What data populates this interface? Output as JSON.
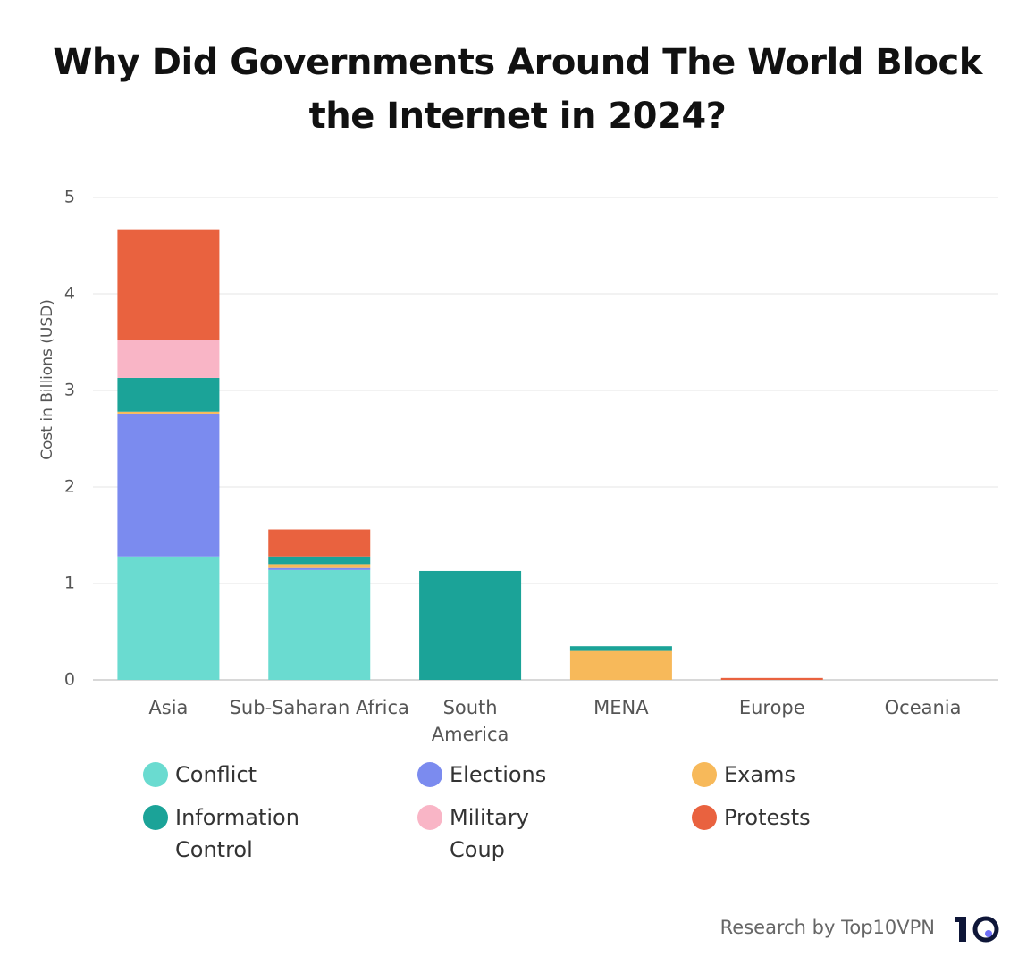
{
  "chart_data": {
    "type": "stacked_bar",
    "title": "Why Did Governments Around The World Block the Internet in 2024?",
    "y_label": "Cost in Billions (USD)",
    "categories": [
      "Asia",
      "Sub-Saharan Africa",
      "South America",
      "MENA",
      "Europe",
      "Oceania"
    ],
    "series": [
      {
        "name": "Conflict",
        "color": "#6adbd0",
        "values": [
          1.28,
          1.14,
          0,
          0,
          0,
          0
        ]
      },
      {
        "name": "Elections",
        "color": "#7b8bef",
        "values": [
          1.48,
          0.02,
          0,
          0,
          0,
          0
        ]
      },
      {
        "name": "Exams",
        "color": "#f7b95a",
        "values": [
          0.02,
          0.04,
          0,
          0.3,
          0,
          0
        ]
      },
      {
        "name": "Information Control",
        "color": "#1ba398",
        "values": [
          0.35,
          0.08,
          1.13,
          0.05,
          0,
          0
        ]
      },
      {
        "name": "Military Coup",
        "color": "#f9b5c6",
        "values": [
          0.39,
          0,
          0,
          0,
          0,
          0
        ]
      },
      {
        "name": "Protests",
        "color": "#e9623f",
        "values": [
          1.15,
          0.28,
          0,
          0,
          0.02,
          0
        ]
      }
    ],
    "ylim": [
      0,
      5
    ],
    "yticks": [
      0,
      1,
      2,
      3,
      4,
      5
    ],
    "grid": true,
    "source": "Research by Top10VPN"
  }
}
